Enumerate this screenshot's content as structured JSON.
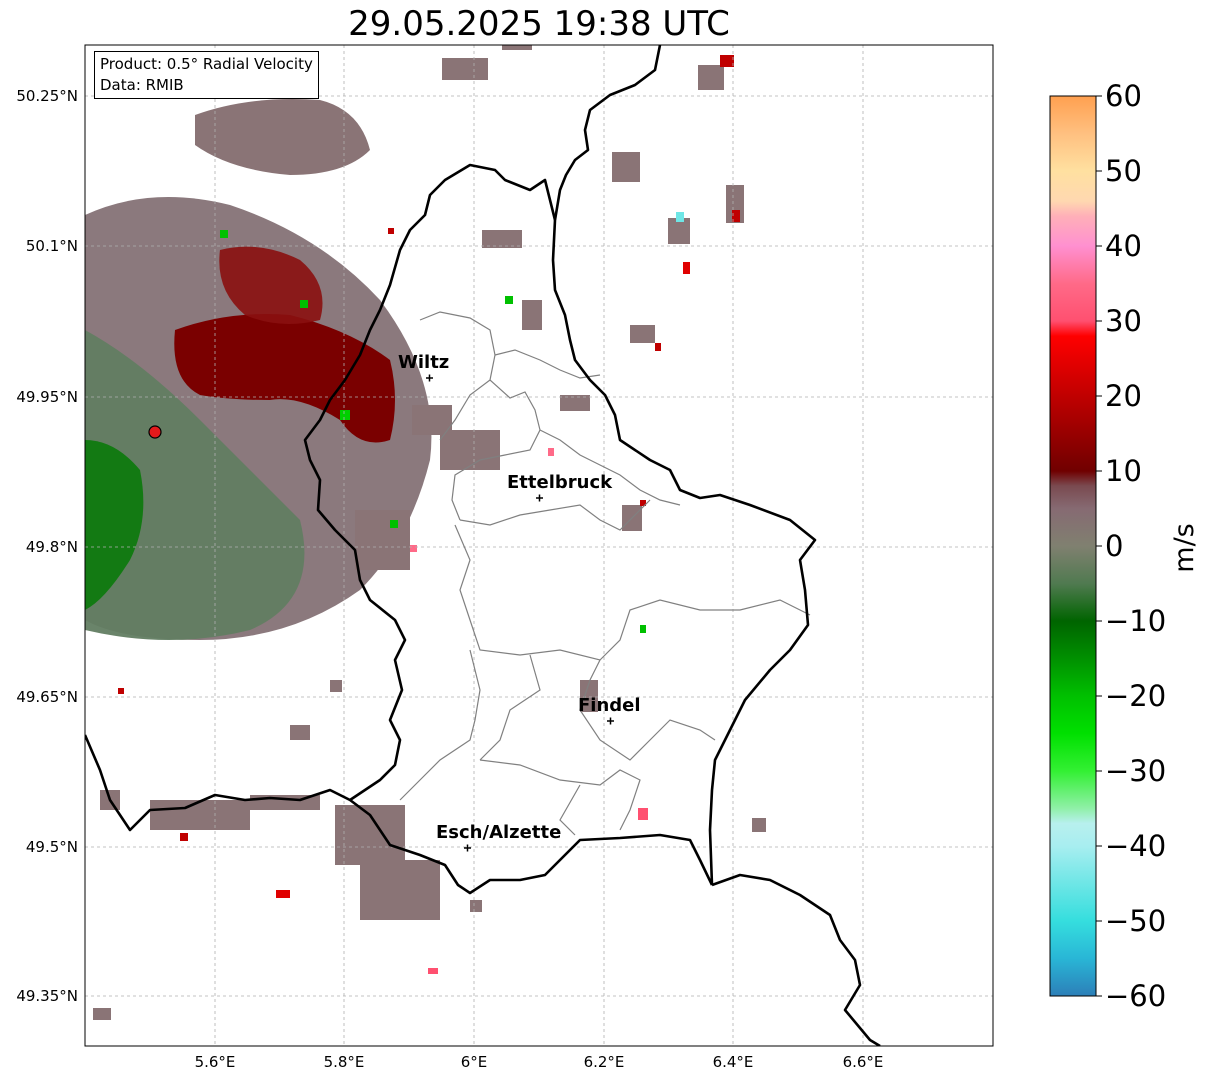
{
  "title": "29.05.2025 19:38 UTC",
  "info_box": {
    "product_line": "Product: 0.5° Radial Velocity",
    "data_line": "Data: RMIB"
  },
  "map": {
    "lat_ticks": [
      "50.25°N",
      "50.1°N",
      "49.95°N",
      "49.8°N",
      "49.65°N",
      "49.5°N",
      "49.35°N"
    ],
    "lon_ticks": [
      "5.6°E",
      "5.8°E",
      "6°E",
      "6.2°E",
      "6.4°E",
      "6.6°E"
    ],
    "cities": [
      {
        "name": "Wiltz"
      },
      {
        "name": "Ettelbruck"
      },
      {
        "name": "Findel"
      },
      {
        "name": "Esch/Alzette"
      }
    ],
    "radar_marker_color": "#e31a1c",
    "border_color": "#000000",
    "canton_color": "#808080"
  },
  "colorbar": {
    "label": "m/s",
    "min": -60,
    "max": 60,
    "ticks": [
      "60",
      "50",
      "40",
      "30",
      "20",
      "10",
      "0",
      "−10",
      "−20",
      "−30",
      "−40",
      "−50",
      "−60"
    ],
    "stops": [
      {
        "v": -60,
        "c": "#2c7fb8"
      },
      {
        "v": -55,
        "c": "#29b6d6"
      },
      {
        "v": -50,
        "c": "#35dede"
      },
      {
        "v": -45,
        "c": "#6ee6e6"
      },
      {
        "v": -40,
        "c": "#a8eef0"
      },
      {
        "v": -37,
        "c": "#b8f0ee"
      },
      {
        "v": -35,
        "c": "#90f0a8"
      },
      {
        "v": -30,
        "c": "#33f033"
      },
      {
        "v": -25,
        "c": "#00e000"
      },
      {
        "v": -20,
        "c": "#00c000"
      },
      {
        "v": -15,
        "c": "#009000"
      },
      {
        "v": -10,
        "c": "#006400"
      },
      {
        "v": -5,
        "c": "#507a50"
      },
      {
        "v": 0,
        "c": "#808070"
      },
      {
        "v": 5,
        "c": "#866a72"
      },
      {
        "v": 8,
        "c": "#7a4a50"
      },
      {
        "v": 10,
        "c": "#700000"
      },
      {
        "v": 20,
        "c": "#c00000"
      },
      {
        "v": 28,
        "c": "#ff0000"
      },
      {
        "v": 30,
        "c": "#ff5070"
      },
      {
        "v": 35,
        "c": "#ff6a88"
      },
      {
        "v": 40,
        "c": "#ff90d0"
      },
      {
        "v": 44,
        "c": "#ffb0b8"
      },
      {
        "v": 46,
        "c": "#ffd8b0"
      },
      {
        "v": 50,
        "c": "#ffe0a0"
      },
      {
        "v": 55,
        "c": "#ffc080"
      },
      {
        "v": 60,
        "c": "#ffa050"
      }
    ]
  }
}
